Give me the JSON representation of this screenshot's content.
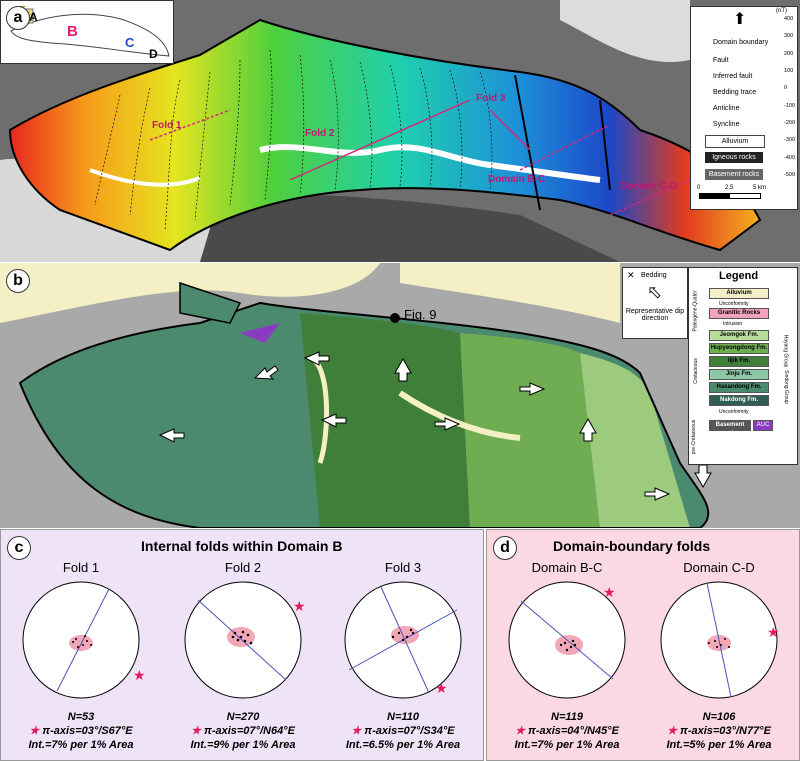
{
  "panel_a": {
    "label": "a",
    "inset_labels": [
      "E",
      "A",
      "B",
      "C",
      "D"
    ],
    "fold_labels": {
      "fold1": "Fold 1",
      "fold2": "Fold 2",
      "fold3": "Fold 3",
      "bc": "Domain B-C",
      "cd": "Domain C-D"
    },
    "legend": {
      "domain_boundary": "Domain boundary",
      "fault": "Fault",
      "inferred_fault": "Inferred fault",
      "bedding_trace": "Bedding trace",
      "anticline": "Anticline",
      "syncline": "Syncline",
      "alluvium": "Alluvium",
      "igneous": "Igneous rocks",
      "basement": "Basement rocks"
    },
    "colorbar": {
      "unit": "(nT)",
      "ticks": [
        "400",
        "300",
        "200",
        "100",
        "0",
        "-100",
        "-200",
        "-300",
        "-400",
        "-500"
      ]
    },
    "scale": {
      "ticks": [
        "0",
        "2.5",
        "5 km"
      ]
    }
  },
  "panel_b": {
    "label": "b",
    "fig_label": "Fig. 9",
    "bedding_label": "Bedding",
    "dip_label": "Representative dip direction",
    "legend": {
      "title": "Legend",
      "alluvium": "Alluvium",
      "granitic": "Granitic Rocks",
      "paleogene": "Paleogene-Quater",
      "unconformity": "Unconformity",
      "intrusion": "Intrusion",
      "formations": [
        "Jeomgok Fm.",
        "Hupyeongdong Fm.",
        "Iljik Fm.",
        "Jinju Fm.",
        "Hasandong Fm.",
        "Nakdong Fm."
      ],
      "cretaceous": "Cretaceous",
      "hayang": "Hayang Group",
      "sindong": "Sindong Group",
      "pre_cretaceous": "pre-Cretaceous",
      "basement": "Basement rocks",
      "auc": "AUC"
    }
  },
  "panel_c": {
    "label": "c",
    "title": "Internal folds within Domain B",
    "nets": [
      {
        "name": "Fold 1",
        "n": "N=53",
        "pi": "π-axis=03°/S67°E",
        "int": "Int.=7% per 1% Area"
      },
      {
        "name": "Fold 2",
        "n": "N=270",
        "pi": "π-axis=07°/N64°E",
        "int": "Int.=9% per 1% Area"
      },
      {
        "name": "Fold 3",
        "n": "N=110",
        "pi": "π-axis=07°/S34°E",
        "int": "Int.=6.5% per 1% Area"
      }
    ]
  },
  "panel_d": {
    "label": "d",
    "title": "Domain-boundary folds",
    "nets": [
      {
        "name": "Domain B-C",
        "n": "N=119",
        "pi": "π-axis=04°/N45°E",
        "int": "Int.=7% per 1% Area"
      },
      {
        "name": "Domain C-D",
        "n": "N=106",
        "pi": "π-axis=03°/N77°E",
        "int": "Int.=5% per 1% Area"
      }
    ]
  },
  "colors": {
    "star": "#e6195d",
    "great_circle": "#4a56b8",
    "contour": "#f2a7b7"
  }
}
